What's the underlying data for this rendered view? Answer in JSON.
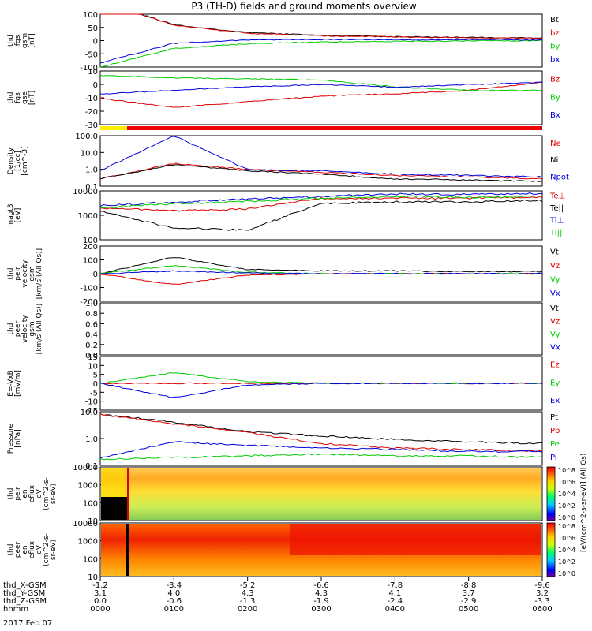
{
  "title": "P3 (TH-D) fields and ground moments overview",
  "date": "2017 Feb 07",
  "panels": [
    {
      "id": "fgs-gsm",
      "ylabel": [
        "thd",
        "fgs",
        "gsm",
        "[nT]"
      ],
      "ticks": [
        "100",
        "50",
        "0",
        "-50",
        "-100"
      ],
      "ylim": [
        -100,
        100
      ],
      "legend": [
        {
          "name": "Bt",
          "color": "#000000"
        },
        {
          "name": "bz",
          "color": "#dd0000"
        },
        {
          "name": "by",
          "color": "#00cc00"
        },
        {
          "name": "bx",
          "color": "#0000dd"
        }
      ]
    },
    {
      "id": "fgs-gse",
      "ylabel": [
        "thd",
        "fgs",
        "gse",
        "[nT]"
      ],
      "ticks": [
        "10",
        "0",
        "-10",
        "-20",
        "-30"
      ],
      "ylim": [
        -35,
        12
      ],
      "legend": [
        {
          "name": "Bz",
          "color": "#dd0000"
        },
        {
          "name": "By",
          "color": "#00cc00"
        },
        {
          "name": "Bx",
          "color": "#0000dd"
        }
      ]
    },
    {
      "id": "density",
      "ylabel": [
        "Density",
        "[1/cc]",
        "[cm^-3]"
      ],
      "ticks": [
        "100.0",
        "10.0",
        "1.0",
        "0.1"
      ],
      "ylim": [
        0.1,
        200
      ],
      "scale": "log",
      "legend": [
        {
          "name": "Ne",
          "color": "#dd0000"
        },
        {
          "name": "Ni",
          "color": "#000000"
        },
        {
          "name": "Npot",
          "color": "#0000dd"
        }
      ]
    },
    {
      "id": "temperature",
      "ylabel": [
        "magt3",
        "[eV]"
      ],
      "ticks": [
        "10000",
        "1000",
        "100"
      ],
      "ylim": [
        100,
        10000
      ],
      "scale": "log",
      "legend": [
        {
          "name": "Te⊥",
          "color": "#dd0000"
        },
        {
          "name": "Te||",
          "color": "#000000"
        },
        {
          "name": "Ti⊥",
          "color": "#0000dd"
        },
        {
          "name": "Ti||",
          "color": "#00cc00"
        }
      ]
    },
    {
      "id": "peir-velocity",
      "ylabel": [
        "thd",
        "peir",
        "velocity",
        "gsm",
        "[km/s (All Qs)]"
      ],
      "ticks": [
        "200",
        "100",
        "0",
        "-100",
        "-200"
      ],
      "ylim": [
        -200,
        200
      ],
      "legend": [
        {
          "name": "Vt",
          "color": "#000000"
        },
        {
          "name": "Vz",
          "color": "#dd0000"
        },
        {
          "name": "Vy",
          "color": "#00cc00"
        },
        {
          "name": "Vx",
          "color": "#0000dd"
        }
      ]
    },
    {
      "id": "peer-velocity",
      "ylabel": [
        "thd",
        "peer",
        "velocity",
        "gsm",
        "[km/s (All Qs)]"
      ],
      "ticks": [
        "1.0",
        "0.8",
        "0.6",
        "0.4",
        "0.2",
        "0.0"
      ],
      "ylim": [
        0,
        1
      ],
      "legend": [
        {
          "name": "Vt",
          "color": "#000000"
        },
        {
          "name": "Vz",
          "color": "#dd0000"
        },
        {
          "name": "Vy",
          "color": "#00cc00"
        },
        {
          "name": "Vx",
          "color": "#0000dd"
        }
      ]
    },
    {
      "id": "efield",
      "ylabel": [
        "E=-VxB",
        "[mV/m]"
      ],
      "ticks": [
        "15",
        "10",
        "5",
        "0",
        "-5",
        "-10",
        "-15"
      ],
      "ylim": [
        -15,
        15
      ],
      "legend": [
        {
          "name": "Ez",
          "color": "#dd0000"
        },
        {
          "name": "Ey",
          "color": "#00cc00"
        },
        {
          "name": "Ex",
          "color": "#0000dd"
        }
      ]
    },
    {
      "id": "pressure",
      "ylabel": [
        "Pressure",
        "[nPa]"
      ],
      "ticks": [
        "10.0",
        "1.0",
        "0.1"
      ],
      "ylim": [
        0.04,
        20
      ],
      "scale": "log",
      "legend": [
        {
          "name": "Pt",
          "color": "#000000"
        },
        {
          "name": "Pb",
          "color": "#dd0000"
        },
        {
          "name": "Pe",
          "color": "#00cc00"
        },
        {
          "name": "Pi",
          "color": "#0000dd"
        }
      ]
    },
    {
      "id": "peir-spec",
      "ylabel": [
        "thd",
        "peir",
        "en",
        "eflux",
        "eV",
        "(cm^2-s-",
        "sr-eV)"
      ],
      "ticks": [
        "10000",
        "1000",
        "100",
        "10"
      ]
    },
    {
      "id": "peer-spec",
      "ylabel": [
        "thd",
        "peer",
        "en",
        "eflux",
        "eV",
        "(cm^2-s-",
        "sr-eV)"
      ],
      "ticks": [
        "10000",
        "1000",
        "100",
        "10"
      ]
    }
  ],
  "colorbar": {
    "label": "[eV/(cm^2-s-sr-eV)] (All Qs)",
    "ticks": [
      "10^8",
      "10^6",
      "10^4",
      "10^2",
      "10^0"
    ],
    "ticks_lower": [
      "10^8",
      "10^6",
      "10^4",
      "10^2",
      "10^0"
    ]
  },
  "xaxis": {
    "row_labels": [
      "thd_X-GSM",
      "thd_Y-GSM",
      "thd_Z-GSM",
      "hhmm"
    ],
    "columns": [
      [
        "-1.2",
        "3.1",
        "0.0",
        "0000"
      ],
      [
        "-3.4",
        "4.0",
        "-0.6",
        "0100"
      ],
      [
        "-5.2",
        "4.3",
        "-1.3",
        "0200"
      ],
      [
        "-6.6",
        "4.3",
        "-1.9",
        "0300"
      ],
      [
        "-7.8",
        "4.1",
        "-2.4",
        "0400"
      ],
      [
        "-8.8",
        "3.7",
        "-2.9",
        "0500"
      ],
      [
        "-9.6",
        "3.2",
        "-3.3",
        "0600"
      ]
    ]
  },
  "chart_data": {
    "type": "line",
    "title": "P3 (TH-D) fields and ground moments overview",
    "x": [
      "0000",
      "0100",
      "0200",
      "0300",
      "0400",
      "0500",
      "0600"
    ],
    "xlabel": "hhmm",
    "series": [
      {
        "name": "Bt",
        "panel": "fgs-gsm",
        "values": [
          150,
          60,
          30,
          20,
          15,
          12,
          10
        ]
      },
      {
        "name": "bz",
        "panel": "fgs-gsm",
        "values": [
          150,
          58,
          28,
          18,
          14,
          11,
          9
        ]
      },
      {
        "name": "by",
        "panel": "fgs-gsm",
        "values": [
          -100,
          -30,
          -12,
          -6,
          -3,
          -1,
          0
        ]
      },
      {
        "name": "bx",
        "panel": "fgs-gsm",
        "values": [
          -85,
          -10,
          2,
          4,
          3,
          4,
          2
        ]
      },
      {
        "name": "Bz",
        "panel": "fgs-gse",
        "values": [
          -12,
          -20,
          -15,
          -10,
          -8,
          -5,
          2
        ]
      },
      {
        "name": "By",
        "panel": "fgs-gse",
        "values": [
          8,
          6,
          5,
          4,
          -2,
          -5,
          -5
        ]
      },
      {
        "name": "Bx",
        "panel": "fgs-gse",
        "values": [
          -8,
          -5,
          -2,
          0,
          -2,
          0,
          2
        ]
      },
      {
        "name": "Ne",
        "panel": "density",
        "values": [
          0.3,
          3,
          1.2,
          0.8,
          0.5,
          0.4,
          0.3
        ]
      },
      {
        "name": "Ni",
        "panel": "density",
        "values": [
          0.3,
          2.5,
          1.0,
          0.6,
          0.3,
          0.25,
          0.2
        ]
      },
      {
        "name": "Npot",
        "panel": "density",
        "values": [
          1,
          200,
          1.2,
          1.0,
          0.6,
          0.5,
          0.4
        ]
      },
      {
        "name": "Te⊥",
        "panel": "temperature",
        "values": [
          2000,
          1500,
          1800,
          5000,
          5000,
          5000,
          5500
        ]
      },
      {
        "name": "Te||",
        "panel": "temperature",
        "values": [
          1500,
          300,
          250,
          3000,
          3500,
          3500,
          4000
        ]
      },
      {
        "name": "Ti⊥",
        "panel": "temperature",
        "values": [
          2500,
          3500,
          4500,
          6000,
          7500,
          7000,
          8000
        ]
      },
      {
        "name": "Ti||",
        "panel": "temperature",
        "values": [
          2000,
          3000,
          3800,
          5000,
          6000,
          5500,
          6000
        ]
      },
      {
        "name": "Vt",
        "panel": "peir-velocity",
        "values": [
          0,
          120,
          30,
          20,
          20,
          15,
          15
        ]
      },
      {
        "name": "Vz",
        "panel": "peir-velocity",
        "values": [
          0,
          -80,
          -10,
          0,
          0,
          0,
          0
        ]
      },
      {
        "name": "Vy",
        "panel": "peir-velocity",
        "values": [
          0,
          60,
          10,
          0,
          0,
          0,
          0
        ]
      },
      {
        "name": "Vx",
        "panel": "peir-velocity",
        "values": [
          0,
          20,
          5,
          0,
          0,
          0,
          0
        ]
      },
      {
        "name": "Ez",
        "panel": "efield",
        "values": [
          0,
          0,
          0,
          0,
          0,
          0,
          0
        ]
      },
      {
        "name": "Ey",
        "panel": "efield",
        "values": [
          0,
          6,
          1,
          0,
          0,
          0,
          0
        ]
      },
      {
        "name": "Ex",
        "panel": "efield",
        "values": [
          0,
          -8,
          -1,
          0,
          0,
          0,
          0
        ]
      },
      {
        "name": "Pt",
        "panel": "pressure",
        "values": [
          15,
          6,
          2,
          1.2,
          0.8,
          0.6,
          0.5
        ]
      },
      {
        "name": "Pb",
        "panel": "pressure",
        "values": [
          15,
          5,
          1.8,
          0.5,
          0.3,
          0.25,
          0.2
        ]
      },
      {
        "name": "Pe",
        "panel": "pressure",
        "values": [
          0.08,
          0.1,
          0.12,
          0.15,
          0.12,
          0.12,
          0.1
        ]
      },
      {
        "name": "Pi",
        "panel": "pressure",
        "values": [
          0.1,
          0.6,
          0.4,
          0.3,
          0.25,
          0.2,
          0.2
        ]
      }
    ]
  }
}
